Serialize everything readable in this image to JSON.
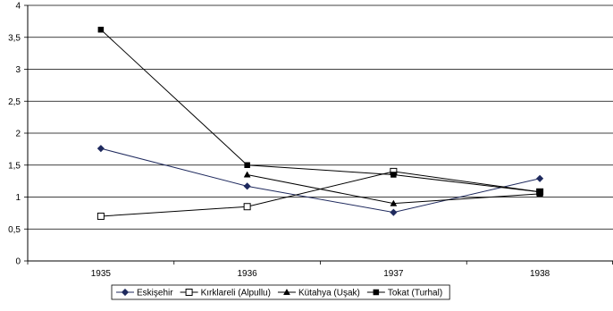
{
  "chart_data": {
    "type": "line",
    "categories": [
      "1935",
      "1936",
      "1937",
      "1938"
    ],
    "ylim": [
      0,
      4
    ],
    "yticks": [
      "0",
      "0,5",
      "1",
      "1,5",
      "2",
      "2,5",
      "3",
      "3,5",
      "4"
    ],
    "grid": true,
    "legend_position": "bottom",
    "series": [
      {
        "name": "Eskişehir",
        "marker": "diamond",
        "color": "#1f2a5e",
        "values": [
          1.76,
          1.17,
          0.76,
          1.29
        ]
      },
      {
        "name": "Kırklareli (Alpullu)",
        "marker": "square-open",
        "color": "#000000",
        "values": [
          0.7,
          0.85,
          1.4,
          1.08
        ]
      },
      {
        "name": "Kütahya (Uşak)",
        "marker": "triangle",
        "color": "#000000",
        "values": [
          null,
          1.35,
          0.9,
          1.05
        ]
      },
      {
        "name": "Tokat (Turhal)",
        "marker": "square",
        "color": "#000000",
        "values": [
          3.62,
          1.5,
          1.35,
          1.08
        ]
      }
    ]
  }
}
